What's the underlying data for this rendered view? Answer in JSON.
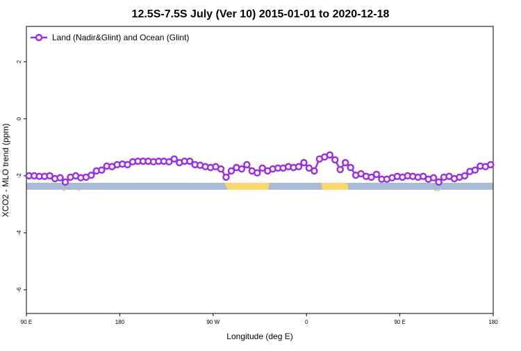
{
  "chart_data": {
    "type": "line",
    "title": "12.5S-7.5S July (Ver 10)   2015-01-01 to 2020-12-18",
    "xlabel": "Longitude (deg E)",
    "ylabel": "XCO2 - MLO trend (ppm)",
    "xlim": [
      90,
      540
    ],
    "ylim": [
      -6.83,
      3.24
    ],
    "xticks": [
      {
        "value": 90,
        "label": "90 E"
      },
      180,
      {
        "value": 270,
        "label": "90 W"
      },
      {
        "value": 360,
        "label": "0"
      },
      {
        "value": 450,
        "label": "90 E"
      },
      {
        "value": 540,
        "label": "180"
      }
    ],
    "yticks": [
      -6,
      -4,
      -2,
      0,
      2
    ],
    "legend": "upper left",
    "x": [
      92.5,
      97.5,
      102.5,
      107.5,
      112.5,
      117.5,
      122.5,
      127.5,
      132.5,
      137.5,
      142.5,
      147.5,
      152.5,
      157.5,
      162.5,
      167.5,
      172.5,
      177.5,
      182.5,
      187.5,
      192.5,
      197.5,
      202.5,
      207.5,
      212.5,
      217.5,
      222.5,
      227.5,
      232.5,
      237.5,
      242.5,
      247.5,
      252.5,
      257.5,
      262.5,
      267.5,
      272.5,
      277.5,
      282.5,
      287.5,
      292.5,
      297.5,
      302.5,
      307.5,
      312.5,
      317.5,
      322.5,
      327.5,
      332.5,
      337.5,
      342.5,
      347.5,
      352.5,
      357.5,
      362.5,
      367.5,
      372.5,
      377.5,
      382.5,
      387.5,
      392.5,
      397.5,
      402.5,
      407.5,
      412.5,
      417.5,
      422.5,
      427.5,
      432.5,
      437.5,
      442.5,
      447.5,
      452.5,
      457.5,
      462.5,
      467.5,
      472.5,
      477.5,
      482.5,
      487.5,
      492.5,
      497.5,
      502.5,
      507.5,
      512.5,
      517.5,
      522.5,
      527.5,
      532.5,
      537.5
    ],
    "series": [
      {
        "name": "Land (Nadir&Glint) and Ocean (Glint)",
        "color": "#9b30e0",
        "values": [
          -2.0,
          -2.0,
          -2.02,
          -2.02,
          -2.0,
          -2.1,
          -2.07,
          -2.22,
          -2.05,
          -2.0,
          -2.07,
          -2.05,
          -1.98,
          -1.83,
          -1.8,
          -1.66,
          -1.68,
          -1.61,
          -1.59,
          -1.61,
          -1.51,
          -1.49,
          -1.49,
          -1.49,
          -1.51,
          -1.49,
          -1.49,
          -1.51,
          -1.41,
          -1.54,
          -1.49,
          -1.49,
          -1.61,
          -1.63,
          -1.68,
          -1.71,
          -1.68,
          -1.76,
          -2.05,
          -1.83,
          -1.71,
          -1.76,
          -1.61,
          -1.83,
          -1.9,
          -1.73,
          -1.83,
          -1.76,
          -1.73,
          -1.73,
          -1.68,
          -1.71,
          -1.68,
          -1.54,
          -1.73,
          -1.83,
          -1.41,
          -1.34,
          -1.27,
          -1.44,
          -1.78,
          -1.54,
          -1.71,
          -1.98,
          -1.93,
          -2.02,
          -2.05,
          -1.95,
          -2.12,
          -2.12,
          -2.07,
          -2.02,
          -2.05,
          -2.0,
          -2.02,
          -2.05,
          -2.02,
          -2.12,
          -2.07,
          -2.22,
          -2.05,
          -2.02,
          -2.1,
          -2.05,
          -2.0,
          -1.85,
          -1.8,
          -1.66,
          -1.68,
          -1.61
        ]
      }
    ]
  }
}
